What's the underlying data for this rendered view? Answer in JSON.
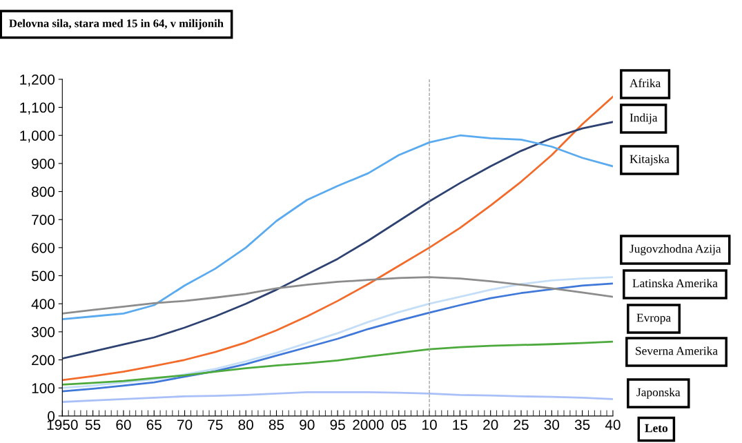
{
  "chart_data": {
    "type": "line",
    "title": "Delovna sila, stara med 15 in 64, v milijonih",
    "xlabel": "Leto",
    "x": [
      1950,
      1955,
      1960,
      1965,
      1970,
      1975,
      1980,
      1985,
      1990,
      1995,
      2000,
      2005,
      2010,
      2015,
      2020,
      2025,
      2030,
      2035,
      2040
    ],
    "xlim": [
      1950,
      2040
    ],
    "xticks": [
      {
        "value": 1950,
        "label": "1950"
      },
      {
        "value": 1955,
        "label": "55"
      },
      {
        "value": 1960,
        "label": "60"
      },
      {
        "value": 1965,
        "label": "65"
      },
      {
        "value": 1970,
        "label": "70"
      },
      {
        "value": 1975,
        "label": "75"
      },
      {
        "value": 1980,
        "label": "80"
      },
      {
        "value": 1985,
        "label": "85"
      },
      {
        "value": 1990,
        "label": "90"
      },
      {
        "value": 1995,
        "label": "95"
      },
      {
        "value": 2000,
        "label": "2000"
      },
      {
        "value": 2005,
        "label": "05"
      },
      {
        "value": 2010,
        "label": "10"
      },
      {
        "value": 2015,
        "label": "15"
      },
      {
        "value": 2020,
        "label": "20"
      },
      {
        "value": 2025,
        "label": "25"
      },
      {
        "value": 2030,
        "label": "30"
      },
      {
        "value": 2035,
        "label": "35"
      },
      {
        "value": 2040,
        "label": "40"
      }
    ],
    "ylim": [
      0,
      1200
    ],
    "yticks": [
      0,
      100,
      200,
      300,
      400,
      500,
      600,
      700,
      800,
      900,
      {
        "value": 1000,
        "label": "1,000"
      },
      {
        "value": 1100,
        "label": "1,100"
      },
      {
        "value": 1200,
        "label": "1,200"
      }
    ],
    "grid": false,
    "legend": false,
    "marker": "none",
    "line_style": "solid",
    "ref_lines": [
      {
        "axis": "x",
        "value": 2010,
        "color": "#999999",
        "line_style": "dashed"
      }
    ],
    "series": [
      {
        "name": "Afrika",
        "color": "#f26b2a",
        "values": [
          128,
          142,
          158,
          178,
          200,
          228,
          262,
          305,
          355,
          410,
          470,
          535,
          600,
          670,
          750,
          835,
          930,
          1040,
          1138
        ]
      },
      {
        "name": "Indija",
        "color": "#2e4272",
        "values": [
          205,
          230,
          255,
          280,
          315,
          355,
          400,
          450,
          505,
          560,
          625,
          695,
          765,
          830,
          890,
          945,
          990,
          1025,
          1048
        ]
      },
      {
        "name": "Kitajska",
        "color": "#5aaaf0",
        "values": [
          345,
          355,
          365,
          395,
          465,
          525,
          600,
          695,
          770,
          820,
          865,
          930,
          975,
          1000,
          990,
          985,
          960,
          920,
          890
        ]
      },
      {
        "name": "Jugovzhodna Azija",
        "color": "#c4def8",
        "values": [
          100,
          108,
          120,
          130,
          148,
          168,
          195,
          225,
          260,
          295,
          335,
          370,
          400,
          425,
          450,
          470,
          483,
          490,
          495
        ]
      },
      {
        "name": "Latinska Amerika",
        "color": "#3f78d8",
        "values": [
          88,
          97,
          108,
          120,
          140,
          160,
          185,
          215,
          245,
          275,
          310,
          340,
          368,
          395,
          420,
          438,
          452,
          465,
          472
        ]
      },
      {
        "name": "Evropa",
        "color": "#8c8c8c",
        "values": [
          365,
          378,
          390,
          402,
          410,
          422,
          435,
          455,
          468,
          478,
          485,
          492,
          495,
          490,
          480,
          468,
          455,
          440,
          425
        ]
      },
      {
        "name": "Severna Amerika",
        "color": "#4caa3c",
        "values": [
          112,
          118,
          125,
          135,
          145,
          158,
          170,
          180,
          188,
          198,
          212,
          225,
          238,
          245,
          250,
          253,
          256,
          260,
          265
        ]
      },
      {
        "name": "Japonska",
        "color": "#a9bff8",
        "values": [
          50,
          55,
          60,
          65,
          70,
          72,
          75,
          80,
          85,
          85,
          85,
          83,
          80,
          75,
          73,
          70,
          68,
          65,
          60
        ]
      }
    ]
  }
}
